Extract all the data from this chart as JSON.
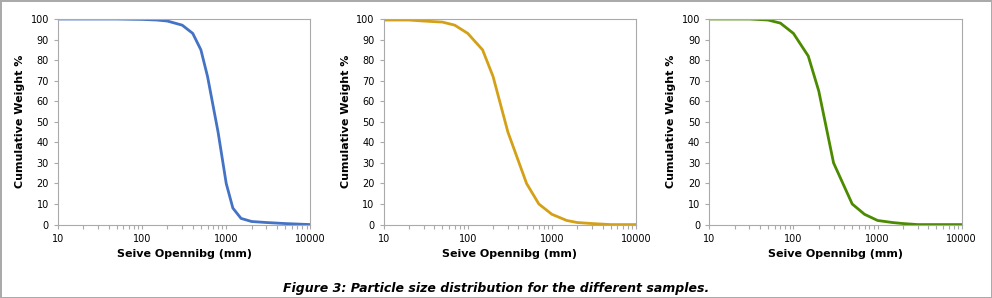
{
  "title": "Figure 3: Particle size distribution for the different samples.",
  "xlabel": "Seive Opennibg (mm)",
  "ylabel": "Cumulative Weight %",
  "colors": [
    "#4472C4",
    "#D4A017",
    "#4B8B00"
  ],
  "xlim": [
    10000,
    10
  ],
  "ylim": [
    0,
    100
  ],
  "yticks": [
    0,
    10,
    20,
    30,
    40,
    50,
    60,
    70,
    80,
    90,
    100
  ],
  "curve1_x": [
    10000,
    5000,
    3000,
    2000,
    1500,
    1200,
    1000,
    800,
    600,
    500,
    400,
    300,
    200,
    150,
    100,
    50,
    20,
    10
  ],
  "curve1_y": [
    0,
    0.5,
    1,
    1.5,
    3,
    8,
    20,
    45,
    72,
    85,
    93,
    97,
    99,
    99.5,
    99.8,
    100,
    100,
    100
  ],
  "curve2_x": [
    10000,
    5000,
    3000,
    2000,
    1500,
    1000,
    700,
    500,
    300,
    200,
    150,
    100,
    70,
    50,
    30,
    20,
    10
  ],
  "curve2_y": [
    0,
    0,
    0.5,
    1,
    2,
    5,
    10,
    20,
    45,
    72,
    85,
    93,
    97,
    98.5,
    99,
    99.5,
    99.5
  ],
  "curve3_x": [
    10000,
    5000,
    3000,
    2000,
    1500,
    1000,
    700,
    500,
    300,
    200,
    150,
    100,
    70,
    50,
    30,
    20,
    10
  ],
  "curve3_y": [
    0,
    0,
    0,
    0.5,
    1,
    2,
    5,
    10,
    30,
    65,
    82,
    93,
    98,
    99.5,
    100,
    100,
    100
  ],
  "linewidth": 2.0,
  "background_color": "#FFFFFF",
  "axes_background": "#FFFFFF",
  "title_fontsize": 9,
  "label_fontsize": 8,
  "tick_fontsize": 7,
  "fig_border_color": "#AAAAAA"
}
